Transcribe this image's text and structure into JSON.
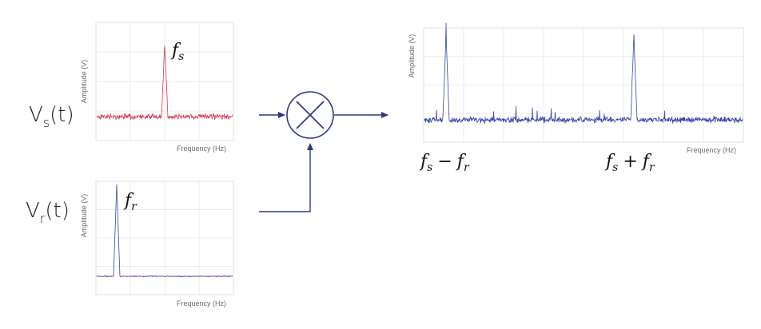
{
  "colors": {
    "signal_red": "#d23a52",
    "signal_blue": "#3546a8",
    "wire": "#2c3a86"
  },
  "inputs": {
    "vs": {
      "base": "V",
      "sub": "s",
      "arg": "(t)"
    },
    "vr": {
      "base": "V",
      "sub": "r",
      "arg": "(t)"
    }
  },
  "plots": {
    "signal": {
      "ylabel": "Amplitude (V)",
      "xlabel": "Frequency (Hz)",
      "peak": {
        "base": "f",
        "sub": "s"
      }
    },
    "reference": {
      "ylabel": "Amplitude (V)",
      "xlabel": "Frequency (Hz)",
      "peak": {
        "base": "f",
        "sub": "r"
      }
    },
    "output": {
      "ylabel": "Amplitude (V)",
      "xlabel": "Frequency (Hz)",
      "diff": {
        "a": "f",
        "a_sub": "s",
        "op": "−",
        "b": "f",
        "b_sub": "r"
      },
      "sum": {
        "a": "f",
        "a_sub": "s",
        "op": "+",
        "b": "f",
        "b_sub": "r"
      }
    }
  },
  "mixer": {
    "symbol": "multiplier-icon"
  }
}
